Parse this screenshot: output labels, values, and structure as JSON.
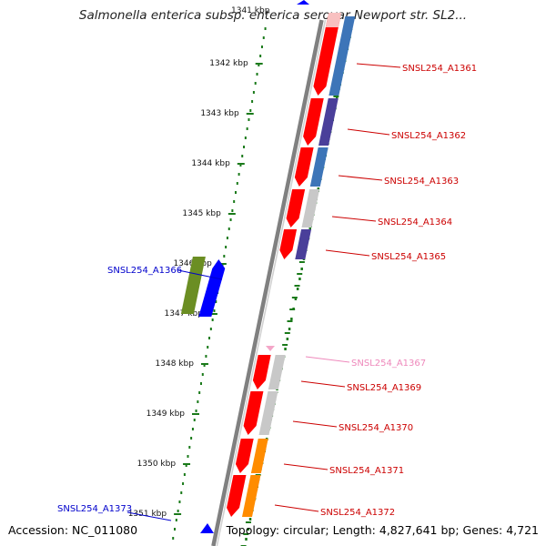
{
  "title": "Salmonella enterica subsp. enterica serovar Newport str. SL2...",
  "accession": "Accession: NC_011080",
  "summary": "Topology: circular; Length: 4,827,641 bp; Genes: 4,721",
  "ruler": {
    "partial_label": "1341 kbp",
    "labels": [
      "1342 kbp",
      "1343 kbp",
      "1344 kbp",
      "1345 kbp",
      "1346 kbp",
      "1347 kbp",
      "1348 kbp",
      "1349 kbp",
      "1350 kbp",
      "1351 kbp"
    ]
  },
  "genes": [
    {
      "id": "SNSL254_A1361",
      "label": "SNSL254_A1361",
      "label_color": "#cc0000",
      "cog_color": "#3d75b8",
      "strand": "+"
    },
    {
      "id": "SNSL254_A1362",
      "label": "SNSL254_A1362",
      "label_color": "#cc0000",
      "cog_color": "#4a3f9a",
      "strand": "+"
    },
    {
      "id": "SNSL254_A1363",
      "label": "SNSL254_A1363",
      "label_color": "#cc0000",
      "cog_color": "#3d75b8",
      "strand": "+"
    },
    {
      "id": "SNSL254_A1364",
      "label": "SNSL254_A1364",
      "label_color": "#cc0000",
      "cog_color": "#c8c8c8",
      "strand": "+"
    },
    {
      "id": "SNSL254_A1365",
      "label": "SNSL254_A1365",
      "label_color": "#cc0000",
      "cog_color": "#4a3f9a",
      "strand": "+"
    },
    {
      "id": "SNSL254_A1366",
      "label": "SNSL254_A1366",
      "label_color": "#0000cc",
      "cog_color": "#6b8e23",
      "strand": "-"
    },
    {
      "id": "SNSL254_A1367",
      "label": "SNSL254_A1367",
      "label_color": "#ee88bb",
      "cog_color": "#f4a6c8",
      "strand": "+"
    },
    {
      "id": "SNSL254_A1369",
      "label": "SNSL254_A1369",
      "label_color": "#cc0000",
      "cog_color": "#c8c8c8",
      "strand": "+"
    },
    {
      "id": "SNSL254_A1370",
      "label": "SNSL254_A1370",
      "label_color": "#cc0000",
      "cog_color": "#c8c8c8",
      "strand": "+"
    },
    {
      "id": "SNSL254_A1371",
      "label": "SNSL254_A1371",
      "label_color": "#cc0000",
      "cog_color": "#ff8c00",
      "strand": "+"
    },
    {
      "id": "SNSL254_A1372",
      "label": "SNSL254_A1372",
      "label_color": "#cc0000",
      "cog_color": "#ff8c00",
      "strand": "+"
    },
    {
      "id": "SNSL254_A1373",
      "label": "SNSL254_A1373",
      "label_color": "#0000cc",
      "cog_color": "#0000ff",
      "strand": "-"
    }
  ],
  "colors": {
    "forward_gene": "#ff0000",
    "reverse_gene": "#0000ff",
    "backbone": "#808080",
    "ruler_ticks": "#1a7a1a"
  }
}
